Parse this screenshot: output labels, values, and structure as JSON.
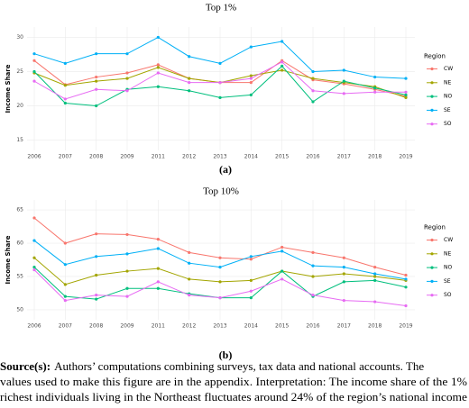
{
  "chart_data": [
    {
      "type": "line",
      "title": "Top 1%",
      "panel_label": "(a)",
      "y_label": "Income Share",
      "legend_title": "Region",
      "legend": "right",
      "grid": true,
      "categories": [
        "2006",
        "2007",
        "2008",
        "2009",
        "2011",
        "2012",
        "2013",
        "2014",
        "2015",
        "2016",
        "2017",
        "2018",
        "2019"
      ],
      "ylim": [
        13.5,
        31.5
      ],
      "yticks": [
        15,
        20,
        25,
        30
      ],
      "series": [
        {
          "name": "CW",
          "color": "#F8766D",
          "values": [
            26.6,
            23.1,
            24.2,
            24.8,
            26.0,
            24.0,
            23.4,
            23.4,
            26.6,
            23.8,
            23.2,
            22.4,
            21.4
          ]
        },
        {
          "name": "NE",
          "color": "#A3A500",
          "values": [
            24.8,
            23.0,
            23.6,
            24.0,
            25.6,
            24.0,
            23.4,
            24.4,
            25.2,
            24.0,
            23.4,
            22.8,
            21.2
          ]
        },
        {
          "name": "NO",
          "color": "#00BF7D",
          "values": [
            25.0,
            20.4,
            20.0,
            22.4,
            22.8,
            22.2,
            21.2,
            21.6,
            25.8,
            20.6,
            23.6,
            22.6,
            21.6
          ]
        },
        {
          "name": "SE",
          "color": "#00B0F6",
          "values": [
            27.6,
            26.2,
            27.6,
            27.6,
            30.0,
            27.2,
            26.2,
            28.6,
            29.4,
            25.0,
            25.2,
            24.2,
            24.0
          ]
        },
        {
          "name": "SO",
          "color": "#E76BF3",
          "values": [
            23.6,
            21.0,
            22.4,
            22.2,
            24.8,
            23.4,
            23.4,
            24.0,
            26.4,
            22.2,
            21.8,
            22.0,
            22.0
          ]
        }
      ]
    },
    {
      "type": "line",
      "title": "Top 10%",
      "panel_label": "(b)",
      "y_label": "Income Share",
      "legend_title": "Region",
      "legend": "right",
      "grid": true,
      "categories": [
        "2006",
        "2007",
        "2008",
        "2009",
        "2011",
        "2012",
        "2013",
        "2014",
        "2015",
        "2016",
        "2017",
        "2018",
        "2019"
      ],
      "ylim": [
        48.5,
        66.5
      ],
      "yticks": [
        50,
        55,
        60,
        65
      ],
      "series": [
        {
          "name": "CW",
          "color": "#F8766D",
          "values": [
            63.8,
            60.0,
            61.4,
            61.3,
            60.6,
            58.6,
            57.8,
            57.6,
            59.4,
            58.6,
            57.8,
            56.4,
            55.2
          ]
        },
        {
          "name": "NE",
          "color": "#A3A500",
          "values": [
            57.8,
            53.8,
            55.2,
            55.8,
            56.2,
            54.6,
            54.2,
            54.4,
            55.8,
            55.0,
            55.4,
            55.0,
            54.4
          ]
        },
        {
          "name": "NO",
          "color": "#00BF7D",
          "values": [
            56.4,
            52.0,
            51.6,
            53.2,
            53.2,
            52.4,
            51.8,
            51.8,
            55.8,
            52.0,
            54.2,
            54.4,
            53.4
          ]
        },
        {
          "name": "SE",
          "color": "#00B0F6",
          "values": [
            60.4,
            56.8,
            58.0,
            58.4,
            59.2,
            57.0,
            56.4,
            58.0,
            58.8,
            56.6,
            56.4,
            55.4,
            54.6
          ]
        },
        {
          "name": "SO",
          "color": "#E76BF3",
          "values": [
            56.0,
            51.4,
            52.2,
            52.0,
            54.2,
            52.2,
            51.8,
            52.8,
            54.6,
            52.2,
            51.4,
            51.2,
            50.6
          ]
        }
      ]
    }
  ],
  "caption": {
    "heading": "Source(s):",
    "lines": [
      "Authors’ computations combining surveys, tax data and national accounts. The",
      "values used to make this figure are in the appendix. Interpretation: The income share of the 1%",
      "richest individuals living in the Northeast fluctuates around 24% of the region’s national income"
    ]
  }
}
